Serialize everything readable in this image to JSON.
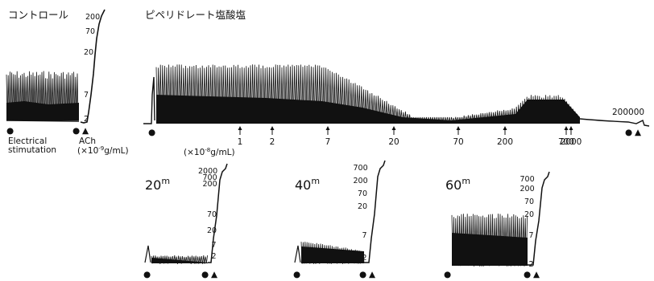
{
  "labels": {
    "control": "コントロール",
    "drug": "ピペリドレート塩酸塩",
    "elec1": "Electrical",
    "elec2": "stimutation",
    "ach": "ACh",
    "ach_unit_pre": "(×10",
    "ach_unit_exp": "-9",
    "ach_unit_post": "g/mL)",
    "drug_unit_pre": "(×10",
    "drug_unit_exp": "-8",
    "drug_unit_post": "g/mL)"
  },
  "control_ach_ticks": [
    "200",
    "70",
    "20",
    "7",
    "2"
  ],
  "main_doses": [
    "1",
    "2",
    "7",
    "20",
    "70",
    "200",
    "700",
    "2000"
  ],
  "main_end_label": "200000",
  "time_panels": [
    {
      "time": "20",
      "unit": "m",
      "ticks": [
        "2000",
        "700",
        "200",
        "70",
        "20",
        "7",
        "2"
      ]
    },
    {
      "time": "40",
      "unit": "m",
      "ticks": [
        "700",
        "200",
        "70",
        "20",
        "7",
        "2"
      ]
    },
    {
      "time": "60",
      "unit": "m",
      "ticks": [
        "700",
        "200",
        "70",
        "20",
        "7",
        "2"
      ]
    }
  ],
  "markers": {
    "stim": "●",
    "ach": "▲"
  }
}
